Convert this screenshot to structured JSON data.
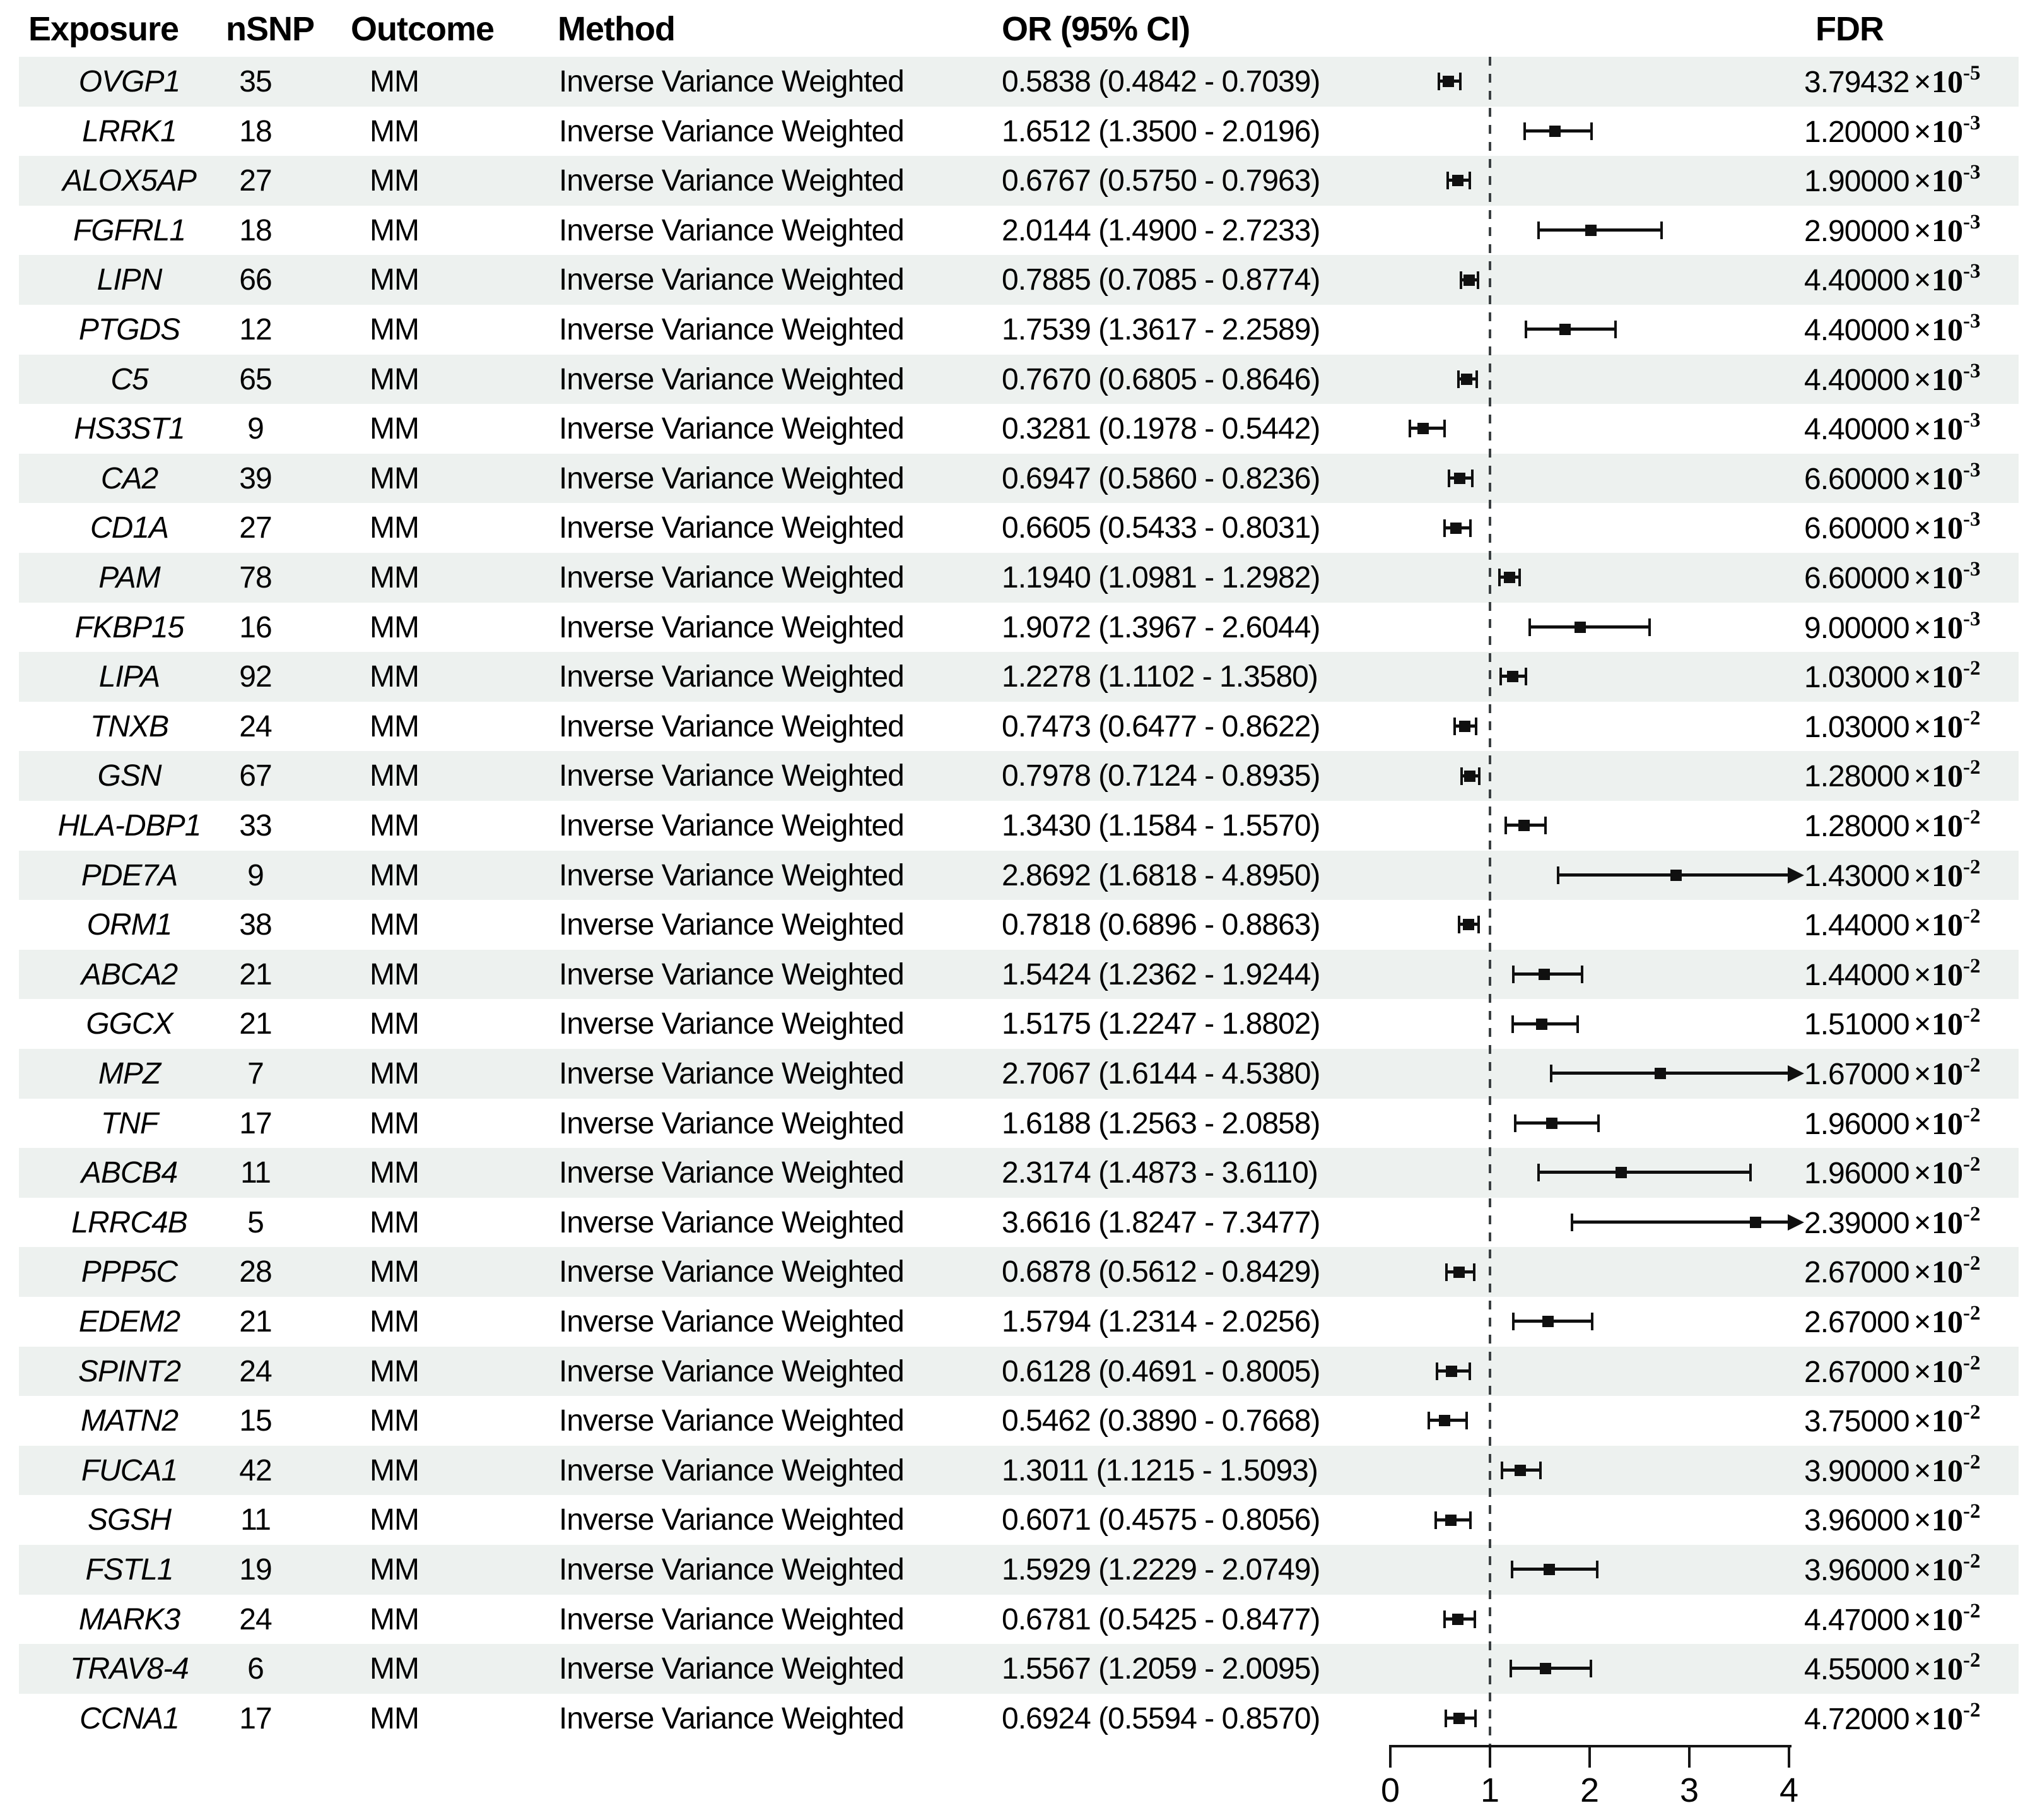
{
  "header": {
    "exposure": "Exposure",
    "nsnp": "nSNP",
    "outcome": "Outcome",
    "method": "Method",
    "or_ci": "OR (95% CI)",
    "fdr": "FDR"
  },
  "notation": {
    "times_ten": "×10"
  },
  "colors": {
    "stripe": "#edf1ef",
    "marker": "#101010",
    "dash": "#3a3f41",
    "text": "#000000"
  },
  "chart_data": {
    "type": "forest",
    "title": "",
    "xlabel": "",
    "xlim": [
      0,
      4
    ],
    "x_ticks": [
      0,
      1,
      2,
      3,
      4
    ],
    "reference_line": 1,
    "legend": "none",
    "columns": [
      "Exposure",
      "nSNP",
      "Outcome",
      "Method",
      "OR (95% CI)",
      "FDR"
    ],
    "rows": [
      {
        "exposure": "OVGP1",
        "nsnp": "35",
        "outcome": "MM",
        "method": "Inverse Variance Weighted",
        "or": 0.5838,
        "lo": 0.4842,
        "hi": 0.7039,
        "or_ci": "0.5838 (0.4842 - 0.7039)",
        "fdr_m": "3.79432",
        "fdr_e": "-5"
      },
      {
        "exposure": "LRRK1",
        "nsnp": "18",
        "outcome": "MM",
        "method": "Inverse Variance Weighted",
        "or": 1.6512,
        "lo": 1.35,
        "hi": 2.0196,
        "or_ci": "1.6512 (1.3500 - 2.0196)",
        "fdr_m": "1.20000",
        "fdr_e": "-3"
      },
      {
        "exposure": "ALOX5AP",
        "nsnp": "27",
        "outcome": "MM",
        "method": "Inverse Variance Weighted",
        "or": 0.6767,
        "lo": 0.575,
        "hi": 0.7963,
        "or_ci": "0.6767 (0.5750 - 0.7963)",
        "fdr_m": "1.90000",
        "fdr_e": "-3"
      },
      {
        "exposure": "FGFRL1",
        "nsnp": "18",
        "outcome": "MM",
        "method": "Inverse Variance Weighted",
        "or": 2.0144,
        "lo": 1.49,
        "hi": 2.7233,
        "or_ci": "2.0144 (1.4900 - 2.7233)",
        "fdr_m": "2.90000",
        "fdr_e": "-3"
      },
      {
        "exposure": "LIPN",
        "nsnp": "66",
        "outcome": "MM",
        "method": "Inverse Variance Weighted",
        "or": 0.7885,
        "lo": 0.7085,
        "hi": 0.8774,
        "or_ci": "0.7885 (0.7085 - 0.8774)",
        "fdr_m": "4.40000",
        "fdr_e": "-3"
      },
      {
        "exposure": "PTGDS",
        "nsnp": "12",
        "outcome": "MM",
        "method": "Inverse Variance Weighted",
        "or": 1.7539,
        "lo": 1.3617,
        "hi": 2.2589,
        "or_ci": "1.7539 (1.3617 - 2.2589)",
        "fdr_m": "4.40000",
        "fdr_e": "-3"
      },
      {
        "exposure": "C5",
        "nsnp": "65",
        "outcome": "MM",
        "method": "Inverse Variance Weighted",
        "or": 0.767,
        "lo": 0.6805,
        "hi": 0.8646,
        "or_ci": "0.7670 (0.6805 - 0.8646)",
        "fdr_m": "4.40000",
        "fdr_e": "-3"
      },
      {
        "exposure": "HS3ST1",
        "nsnp": "9",
        "outcome": "MM",
        "method": "Inverse Variance Weighted",
        "or": 0.3281,
        "lo": 0.1978,
        "hi": 0.5442,
        "or_ci": "0.3281 (0.1978 - 0.5442)",
        "fdr_m": "4.40000",
        "fdr_e": "-3"
      },
      {
        "exposure": "CA2",
        "nsnp": "39",
        "outcome": "MM",
        "method": "Inverse Variance Weighted",
        "or": 0.6947,
        "lo": 0.586,
        "hi": 0.8236,
        "or_ci": "0.6947 (0.5860 - 0.8236)",
        "fdr_m": "6.60000",
        "fdr_e": "-3"
      },
      {
        "exposure": "CD1A",
        "nsnp": "27",
        "outcome": "MM",
        "method": "Inverse Variance Weighted",
        "or": 0.6605,
        "lo": 0.5433,
        "hi": 0.8031,
        "or_ci": "0.6605 (0.5433 - 0.8031)",
        "fdr_m": "6.60000",
        "fdr_e": "-3"
      },
      {
        "exposure": "PAM",
        "nsnp": "78",
        "outcome": "MM",
        "method": "Inverse Variance Weighted",
        "or": 1.194,
        "lo": 1.0981,
        "hi": 1.2982,
        "or_ci": "1.1940 (1.0981 - 1.2982)",
        "fdr_m": "6.60000",
        "fdr_e": "-3"
      },
      {
        "exposure": "FKBP15",
        "nsnp": "16",
        "outcome": "MM",
        "method": "Inverse Variance Weighted",
        "or": 1.9072,
        "lo": 1.3967,
        "hi": 2.6044,
        "or_ci": "1.9072 (1.3967 - 2.6044)",
        "fdr_m": "9.00000",
        "fdr_e": "-3"
      },
      {
        "exposure": "LIPA",
        "nsnp": "92",
        "outcome": "MM",
        "method": "Inverse Variance Weighted",
        "or": 1.2278,
        "lo": 1.1102,
        "hi": 1.358,
        "or_ci": "1.2278 (1.1102 - 1.3580)",
        "fdr_m": "1.03000",
        "fdr_e": "-2"
      },
      {
        "exposure": "TNXB",
        "nsnp": "24",
        "outcome": "MM",
        "method": "Inverse Variance Weighted",
        "or": 0.7473,
        "lo": 0.6477,
        "hi": 0.8622,
        "or_ci": "0.7473 (0.6477 - 0.8622)",
        "fdr_m": "1.03000",
        "fdr_e": "-2"
      },
      {
        "exposure": "GSN",
        "nsnp": "67",
        "outcome": "MM",
        "method": "Inverse Variance Weighted",
        "or": 0.7978,
        "lo": 0.7124,
        "hi": 0.8935,
        "or_ci": "0.7978 (0.7124 - 0.8935)",
        "fdr_m": "1.28000",
        "fdr_e": "-2"
      },
      {
        "exposure": "HLA-DBP1",
        "nsnp": "33",
        "outcome": "MM",
        "method": "Inverse Variance Weighted",
        "or": 1.343,
        "lo": 1.1584,
        "hi": 1.557,
        "or_ci": "1.3430 (1.1584 - 1.5570)",
        "fdr_m": "1.28000",
        "fdr_e": "-2"
      },
      {
        "exposure": "PDE7A",
        "nsnp": "9",
        "outcome": "MM",
        "method": "Inverse Variance Weighted",
        "or": 2.8692,
        "lo": 1.6818,
        "hi": 4.895,
        "or_ci": "2.8692 (1.6818 - 4.8950)",
        "fdr_m": "1.43000",
        "fdr_e": "-2"
      },
      {
        "exposure": "ORM1",
        "nsnp": "38",
        "outcome": "MM",
        "method": "Inverse Variance Weighted",
        "or": 0.7818,
        "lo": 0.6896,
        "hi": 0.8863,
        "or_ci": "0.7818 (0.6896 - 0.8863)",
        "fdr_m": "1.44000",
        "fdr_e": "-2"
      },
      {
        "exposure": "ABCA2",
        "nsnp": "21",
        "outcome": "MM",
        "method": "Inverse Variance Weighted",
        "or": 1.5424,
        "lo": 1.2362,
        "hi": 1.9244,
        "or_ci": "1.5424 (1.2362 - 1.9244)",
        "fdr_m": "1.44000",
        "fdr_e": "-2"
      },
      {
        "exposure": "GGCX",
        "nsnp": "21",
        "outcome": "MM",
        "method": "Inverse Variance Weighted",
        "or": 1.5175,
        "lo": 1.2247,
        "hi": 1.8802,
        "or_ci": "1.5175 (1.2247 - 1.8802)",
        "fdr_m": "1.51000",
        "fdr_e": "-2"
      },
      {
        "exposure": "MPZ",
        "nsnp": "7",
        "outcome": "MM",
        "method": "Inverse Variance Weighted",
        "or": 2.7067,
        "lo": 1.6144,
        "hi": 4.538,
        "or_ci": "2.7067 (1.6144 - 4.5380)",
        "fdr_m": "1.67000",
        "fdr_e": "-2"
      },
      {
        "exposure": "TNF",
        "nsnp": "17",
        "outcome": "MM",
        "method": "Inverse Variance Weighted",
        "or": 1.6188,
        "lo": 1.2563,
        "hi": 2.0858,
        "or_ci": "1.6188 (1.2563 - 2.0858)",
        "fdr_m": "1.96000",
        "fdr_e": "-2"
      },
      {
        "exposure": "ABCB4",
        "nsnp": "11",
        "outcome": "MM",
        "method": "Inverse Variance Weighted",
        "or": 2.3174,
        "lo": 1.4873,
        "hi": 3.611,
        "or_ci": "2.3174 (1.4873 - 3.6110)",
        "fdr_m": "1.96000",
        "fdr_e": "-2"
      },
      {
        "exposure": "LRRC4B",
        "nsnp": "5",
        "outcome": "MM",
        "method": "Inverse Variance Weighted",
        "or": 3.6616,
        "lo": 1.8247,
        "hi": 7.3477,
        "or_ci": "3.6616 (1.8247 - 7.3477)",
        "fdr_m": "2.39000",
        "fdr_e": "-2"
      },
      {
        "exposure": "PPP5C",
        "nsnp": "28",
        "outcome": "MM",
        "method": "Inverse Variance Weighted",
        "or": 0.6878,
        "lo": 0.5612,
        "hi": 0.8429,
        "or_ci": "0.6878 (0.5612 - 0.8429)",
        "fdr_m": "2.67000",
        "fdr_e": "-2"
      },
      {
        "exposure": "EDEM2",
        "nsnp": "21",
        "outcome": "MM",
        "method": "Inverse Variance Weighted",
        "or": 1.5794,
        "lo": 1.2314,
        "hi": 2.0256,
        "or_ci": "1.5794 (1.2314 - 2.0256)",
        "fdr_m": "2.67000",
        "fdr_e": "-2"
      },
      {
        "exposure": "SPINT2",
        "nsnp": "24",
        "outcome": "MM",
        "method": "Inverse Variance Weighted",
        "or": 0.6128,
        "lo": 0.4691,
        "hi": 0.8005,
        "or_ci": "0.6128 (0.4691 - 0.8005)",
        "fdr_m": "2.67000",
        "fdr_e": "-2"
      },
      {
        "exposure": "MATN2",
        "nsnp": "15",
        "outcome": "MM",
        "method": "Inverse Variance Weighted",
        "or": 0.5462,
        "lo": 0.389,
        "hi": 0.7668,
        "or_ci": "0.5462 (0.3890 - 0.7668)",
        "fdr_m": "3.75000",
        "fdr_e": "-2"
      },
      {
        "exposure": "FUCA1",
        "nsnp": "42",
        "outcome": "MM",
        "method": "Inverse Variance Weighted",
        "or": 1.3011,
        "lo": 1.1215,
        "hi": 1.5093,
        "or_ci": "1.3011 (1.1215 - 1.5093)",
        "fdr_m": "3.90000",
        "fdr_e": "-2"
      },
      {
        "exposure": "SGSH",
        "nsnp": "11",
        "outcome": "MM",
        "method": "Inverse Variance Weighted",
        "or": 0.6071,
        "lo": 0.4575,
        "hi": 0.8056,
        "or_ci": "0.6071 (0.4575 - 0.8056)",
        "fdr_m": "3.96000",
        "fdr_e": "-2"
      },
      {
        "exposure": "FSTL1",
        "nsnp": "19",
        "outcome": "MM",
        "method": "Inverse Variance Weighted",
        "or": 1.5929,
        "lo": 1.2229,
        "hi": 2.0749,
        "or_ci": "1.5929 (1.2229 - 2.0749)",
        "fdr_m": "3.96000",
        "fdr_e": "-2"
      },
      {
        "exposure": "MARK3",
        "nsnp": "24",
        "outcome": "MM",
        "method": "Inverse Variance Weighted",
        "or": 0.6781,
        "lo": 0.5425,
        "hi": 0.8477,
        "or_ci": "0.6781 (0.5425 - 0.8477)",
        "fdr_m": "4.47000",
        "fdr_e": "-2"
      },
      {
        "exposure": "TRAV8-4",
        "nsnp": "6",
        "outcome": "MM",
        "method": "Inverse Variance Weighted",
        "or": 1.5567,
        "lo": 1.2059,
        "hi": 2.0095,
        "or_ci": "1.5567 (1.2059 - 2.0095)",
        "fdr_m": "4.55000",
        "fdr_e": "-2"
      },
      {
        "exposure": "CCNA1",
        "nsnp": "17",
        "outcome": "MM",
        "method": "Inverse Variance Weighted",
        "or": 0.6924,
        "lo": 0.5594,
        "hi": 0.857,
        "or_ci": "0.6924 (0.5594 - 0.8570)",
        "fdr_m": "4.72000",
        "fdr_e": "-2"
      }
    ]
  }
}
